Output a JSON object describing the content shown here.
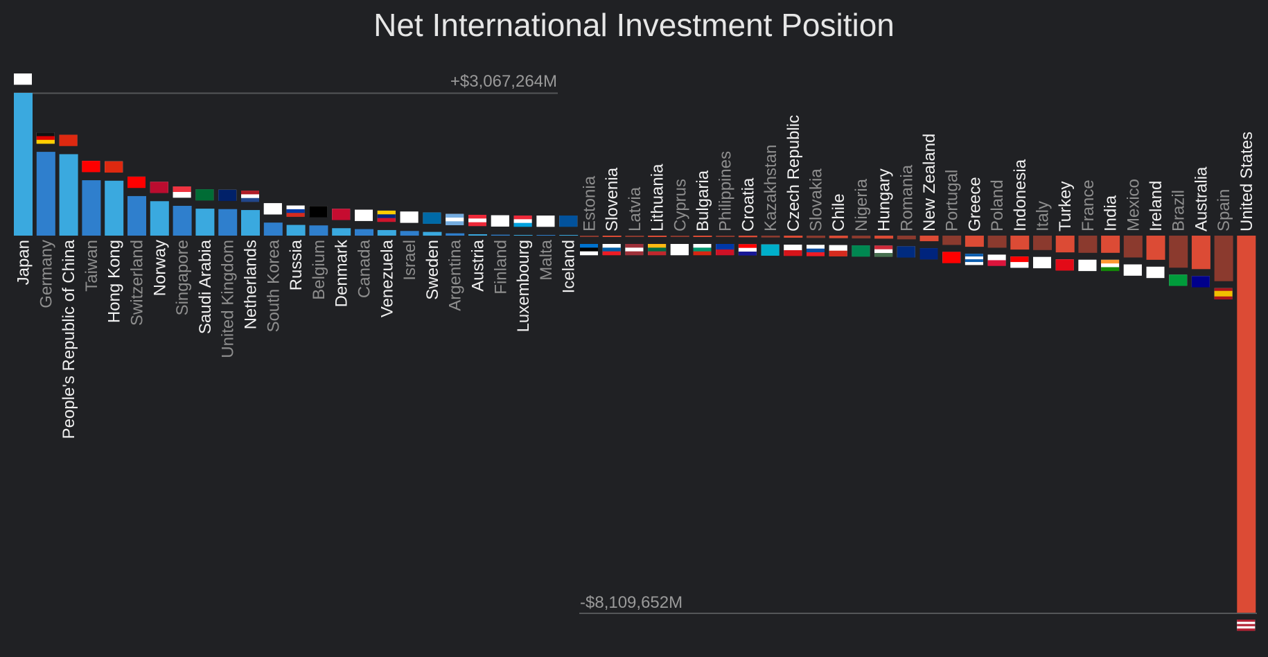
{
  "chart_data": {
    "type": "bar",
    "title": "Net International Investment Position",
    "unit": "$M",
    "max_label": "+$3,067,264M",
    "min_label": "-$8,109,652M",
    "ylim": [
      -8109652,
      3067264
    ],
    "colors": {
      "positive_a": "#3aa9df",
      "positive_b": "#2f7fcd",
      "negative_a": "#dc4b35",
      "negative_b": "#8b3a2e",
      "label_a": "#f0f0f0",
      "label_b": "#8e8e8e"
    },
    "positive": [
      {
        "name": "Japan",
        "value": 3067264
      },
      {
        "name": "Germany",
        "value": 1800000
      },
      {
        "name": "People's Republic of China",
        "value": 1750000
      },
      {
        "name": "Taiwan",
        "value": 1190000
      },
      {
        "name": "Hong Kong",
        "value": 1180000
      },
      {
        "name": "Switzerland",
        "value": 850000
      },
      {
        "name": "Norway",
        "value": 740000
      },
      {
        "name": "Singapore",
        "value": 640000
      },
      {
        "name": "Saudi Arabia",
        "value": 580000
      },
      {
        "name": "United Kingdom",
        "value": 570000
      },
      {
        "name": "Netherlands",
        "value": 550000
      },
      {
        "name": "South Korea",
        "value": 280000
      },
      {
        "name": "Russia",
        "value": 230000
      },
      {
        "name": "Belgium",
        "value": 220000
      },
      {
        "name": "Denmark",
        "value": 160000
      },
      {
        "name": "Canada",
        "value": 140000
      },
      {
        "name": "Venezuela",
        "value": 120000
      },
      {
        "name": "Israel",
        "value": 100000
      },
      {
        "name": "Sweden",
        "value": 80000
      },
      {
        "name": "Argentina",
        "value": 50000
      },
      {
        "name": "Austria",
        "value": 30000
      },
      {
        "name": "Finland",
        "value": 20000
      },
      {
        "name": "Luxembourg",
        "value": 15000
      },
      {
        "name": "Malta",
        "value": 10000
      },
      {
        "name": "Iceland",
        "value": 5000
      }
    ],
    "negative": [
      {
        "name": "Estonia",
        "value": -10000
      },
      {
        "name": "Slovenia",
        "value": -12000
      },
      {
        "name": "Latvia",
        "value": -15000
      },
      {
        "name": "Lithuania",
        "value": -18000
      },
      {
        "name": "Cyprus",
        "value": -20000
      },
      {
        "name": "Bulgaria",
        "value": -25000
      },
      {
        "name": "Philippines",
        "value": -28000
      },
      {
        "name": "Croatia",
        "value": -35000
      },
      {
        "name": "Kazakhstan",
        "value": -40000
      },
      {
        "name": "Czech Republic",
        "value": -45000
      },
      {
        "name": "Slovakia",
        "value": -50000
      },
      {
        "name": "Chile",
        "value": -55000
      },
      {
        "name": "Nigeria",
        "value": -60000
      },
      {
        "name": "Hungary",
        "value": -65000
      },
      {
        "name": "Romania",
        "value": -80000
      },
      {
        "name": "New Zealand",
        "value": -120000
      },
      {
        "name": "Portugal",
        "value": -200000
      },
      {
        "name": "Greece",
        "value": -240000
      },
      {
        "name": "Poland",
        "value": -260000
      },
      {
        "name": "Indonesia",
        "value": -300000
      },
      {
        "name": "Italy",
        "value": -310000
      },
      {
        "name": "Turkey",
        "value": -360000
      },
      {
        "name": "France",
        "value": -370000
      },
      {
        "name": "India",
        "value": -370000
      },
      {
        "name": "Mexico",
        "value": -470000
      },
      {
        "name": "Ireland",
        "value": -520000
      },
      {
        "name": "Brazil",
        "value": -690000
      },
      {
        "name": "Australia",
        "value": -720000
      },
      {
        "name": "Spain",
        "value": -980000
      },
      {
        "name": "United States",
        "value": -8109652
      }
    ]
  }
}
